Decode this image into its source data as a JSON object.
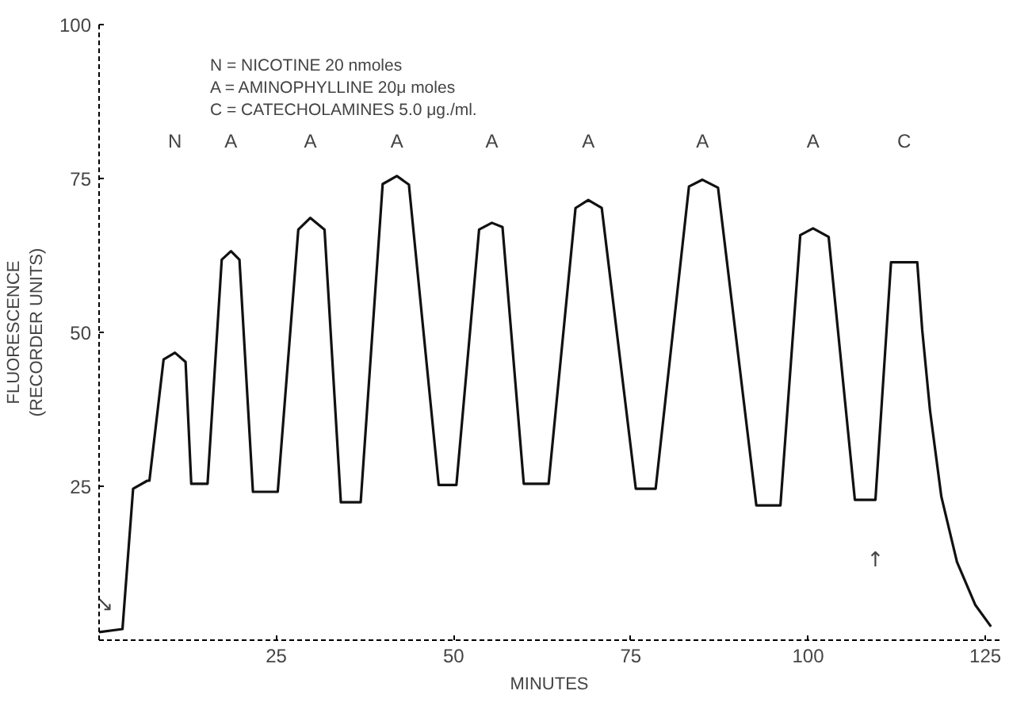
{
  "chart_data": {
    "type": "line",
    "xlabel": "MINUTES",
    "ylabel": "FLUORESCENCE\n(RECORDER UNITS)",
    "xlim": [
      0,
      127
    ],
    "ylim": [
      0,
      100
    ],
    "xticks": [
      25,
      50,
      75,
      100,
      125
    ],
    "yticks": [
      25,
      50,
      75,
      100
    ],
    "grid": false,
    "marker": "none",
    "line_style": "solid",
    "series": [
      {
        "color": "#111111",
        "x": [
          0,
          3.3,
          4.8,
          6.8,
          7.1,
          9.1,
          10.7,
          12.2,
          13,
          15.3,
          17.3,
          18.6,
          19.8,
          21.7,
          25.2,
          28.1,
          29.8,
          31.8,
          34.1,
          36.9,
          40.0,
          42.0,
          43.7,
          47.9,
          50.4,
          53.6,
          55.4,
          56.9,
          59.9,
          63.4,
          67.2,
          69.0,
          70.9,
          75.7,
          78.5,
          83.2,
          85.1,
          87.3,
          92.7,
          96.1,
          98.9,
          100.7,
          102.9,
          106.6,
          109.5,
          111.7,
          115.4,
          116.1,
          117.2,
          118.8,
          121.0,
          123.6,
          125.8
        ],
        "values": [
          1.3,
          1.8,
          24.6,
          25.9,
          25.9,
          45.6,
          46.7,
          45.2,
          25.4,
          25.4,
          61.8,
          63.2,
          61.8,
          24.1,
          24.1,
          66.7,
          68.6,
          66.7,
          22.4,
          22.4,
          74.1,
          75.4,
          74.0,
          25.2,
          25.2,
          66.7,
          67.8,
          67.1,
          25.4,
          25.4,
          70.2,
          71.5,
          70.2,
          24.6,
          24.6,
          73.7,
          74.8,
          73.5,
          21.9,
          21.9,
          65.8,
          66.9,
          65.5,
          22.8,
          22.8,
          61.4,
          61.4,
          50.4,
          37.3,
          23.3,
          12.7,
          5.7,
          2.2
        ]
      }
    ],
    "annotations": [
      "N = NICOTINE 20 nmoles",
      "A = AMINOPHYLLINE 20μ moles",
      "C = CATECHOLAMINES 5.0 μg./ml.",
      "N",
      "A",
      "A",
      "A",
      "A",
      "A",
      "A",
      "A",
      "C",
      "↘",
      "↑"
    ]
  }
}
